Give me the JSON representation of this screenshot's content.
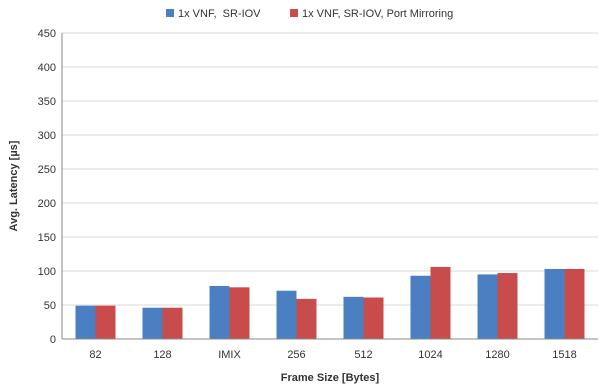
{
  "chart_data": {
    "type": "bar",
    "title": "",
    "xlabel": "Frame Size [Bytes]",
    "ylabel": "Avg. Latency [µs]",
    "categories": [
      "82",
      "128",
      "IMIX",
      "256",
      "512",
      "1024",
      "1280",
      "1518"
    ],
    "ylim": [
      0,
      450
    ],
    "yticks": [
      "0",
      "50",
      "100",
      "150",
      "200",
      "250",
      "300",
      "350",
      "400",
      "450"
    ],
    "grid": true,
    "legend_position": "top",
    "series": [
      {
        "name": "1x VNF,  SR-IOV",
        "color": "#4a7fc1",
        "values": [
          49,
          46,
          78,
          71,
          62,
          93,
          95,
          103
        ]
      },
      {
        "name": "1x VNF, SR-IOV, Port Mirroring",
        "color": "#c94c4c",
        "values": [
          49,
          46,
          76,
          59,
          61,
          106,
          97,
          103
        ]
      }
    ]
  }
}
